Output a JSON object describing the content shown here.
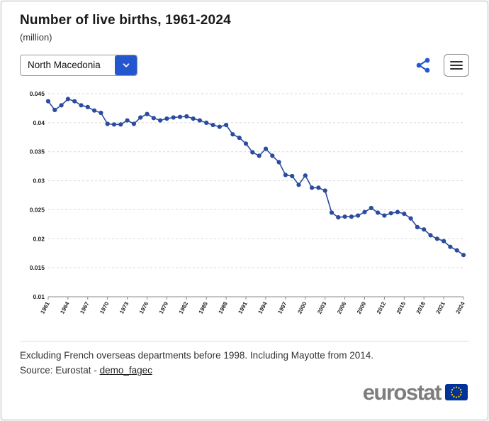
{
  "header": {
    "title": "Number of live births, 1961-2024",
    "unit": "(million)"
  },
  "controls": {
    "country_selected": "North Macedonia",
    "chevron_icon": "chevron-down",
    "share_icon": "share-nodes",
    "menu_icon": "hamburger-menu"
  },
  "colors": {
    "accent_blue": "#2456cd",
    "series_blue": "#2b4ba0",
    "eu_flag_blue": "#003399",
    "eu_star_yellow": "#ffcc00",
    "logo_gray": "#7d7d7d"
  },
  "footer": {
    "note": "Excluding French overseas departments before 1998. Including Mayotte from 2014.",
    "source_prefix": "Source: Eurostat - ",
    "source_link": "demo_fagec",
    "logo_text": "eurostat"
  },
  "chart_data": {
    "type": "line",
    "title": "Number of live births, 1961-2024",
    "ylabel": "(million)",
    "xlabel": "",
    "grid": true,
    "legend": "none",
    "ylim": [
      0.01,
      0.045
    ],
    "ytick_step": 0.005,
    "xtick_step": 3,
    "line_color": "#2b4ba0",
    "x": [
      1961,
      1962,
      1963,
      1964,
      1965,
      1966,
      1967,
      1968,
      1969,
      1970,
      1971,
      1972,
      1973,
      1974,
      1975,
      1976,
      1977,
      1978,
      1979,
      1980,
      1981,
      1982,
      1983,
      1984,
      1985,
      1986,
      1987,
      1988,
      1989,
      1990,
      1991,
      1992,
      1993,
      1994,
      1995,
      1996,
      1997,
      1998,
      1999,
      2000,
      2001,
      2002,
      2003,
      2004,
      2005,
      2006,
      2007,
      2008,
      2009,
      2010,
      2011,
      2012,
      2013,
      2014,
      2015,
      2016,
      2017,
      2018,
      2019,
      2020,
      2021,
      2022,
      2023,
      2024
    ],
    "values": [
      0.0437,
      0.0422,
      0.043,
      0.0441,
      0.0437,
      0.043,
      0.0427,
      0.0421,
      0.0417,
      0.0398,
      0.0397,
      0.0397,
      0.0404,
      0.0398,
      0.0409,
      0.0415,
      0.0408,
      0.0404,
      0.0407,
      0.0409,
      0.041,
      0.0411,
      0.0407,
      0.0404,
      0.04,
      0.0396,
      0.0393,
      0.0396,
      0.038,
      0.0374,
      0.0364,
      0.0349,
      0.0343,
      0.0355,
      0.0343,
      0.0332,
      0.031,
      0.0308,
      0.0293,
      0.0309,
      0.0288,
      0.0288,
      0.0283,
      0.0245,
      0.0237,
      0.0238,
      0.0238,
      0.024,
      0.0246,
      0.0253,
      0.0245,
      0.024,
      0.0244,
      0.0246,
      0.0243,
      0.0235,
      0.022,
      0.0216,
      0.0206,
      0.02,
      0.0196,
      0.0186,
      0.018,
      0.0172
    ]
  }
}
